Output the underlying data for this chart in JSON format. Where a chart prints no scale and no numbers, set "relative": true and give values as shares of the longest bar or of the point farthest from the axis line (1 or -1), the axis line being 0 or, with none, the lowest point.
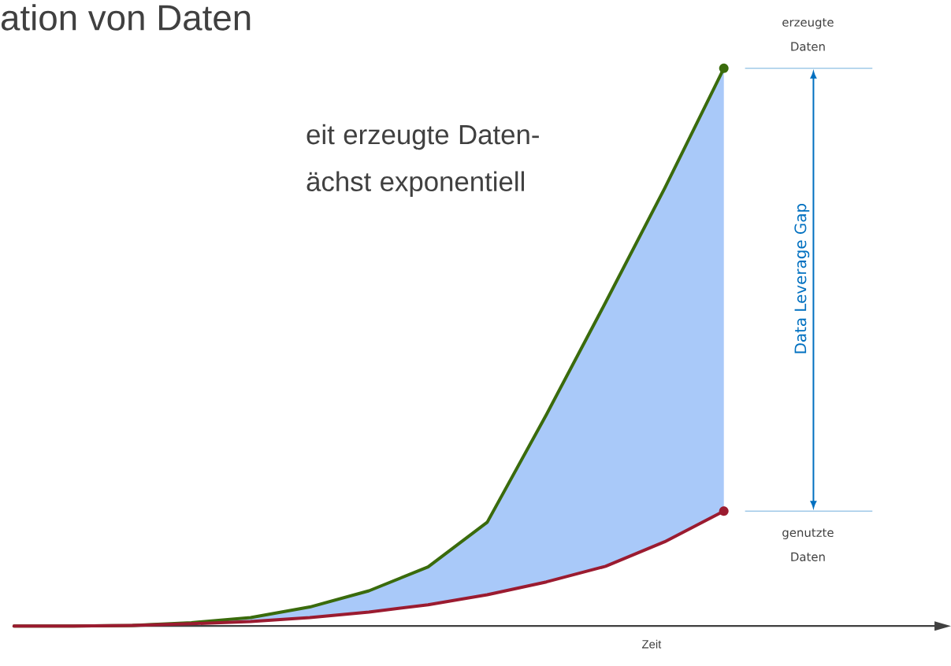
{
  "chart_data": {
    "type": "line",
    "relative": true,
    "title": "ation von Daten",
    "subtitle": "eit erzeugte Daten- ächst exponentiell",
    "xlabel": "Zeit",
    "annotations": [
      "Data Leverage Gap"
    ],
    "categories": [
      null,
      null,
      null,
      null,
      null,
      null,
      null,
      null,
      null,
      null,
      null,
      null,
      null
    ],
    "series": [
      {
        "name": "erzeugte Daten",
        "color": "#3a6b0c",
        "values": [
          0,
          0,
          0.001,
          0.006,
          0.015,
          0.034,
          0.063,
          0.106,
          0.186,
          0.379,
          0.58,
          0.785,
          1
        ],
        "lower": [
          0,
          0,
          0.001,
          0.004,
          0.008,
          0.015,
          0.025,
          0.038,
          0.056,
          0.079,
          0.107,
          0.151,
          0.206
        ],
        "upper": [
          0,
          0,
          0.001,
          0.006,
          0.015,
          0.034,
          0.063,
          0.106,
          0.186,
          0.379,
          0.58,
          0.785,
          1
        ]
      },
      {
        "name": "genutzte Daten",
        "color": "#9b1b30",
        "values": [
          0,
          0,
          0.001,
          0.004,
          0.008,
          0.015,
          0.025,
          0.038,
          0.056,
          0.079,
          0.107,
          0.151,
          0.206
        ]
      }
    ]
  }
}
